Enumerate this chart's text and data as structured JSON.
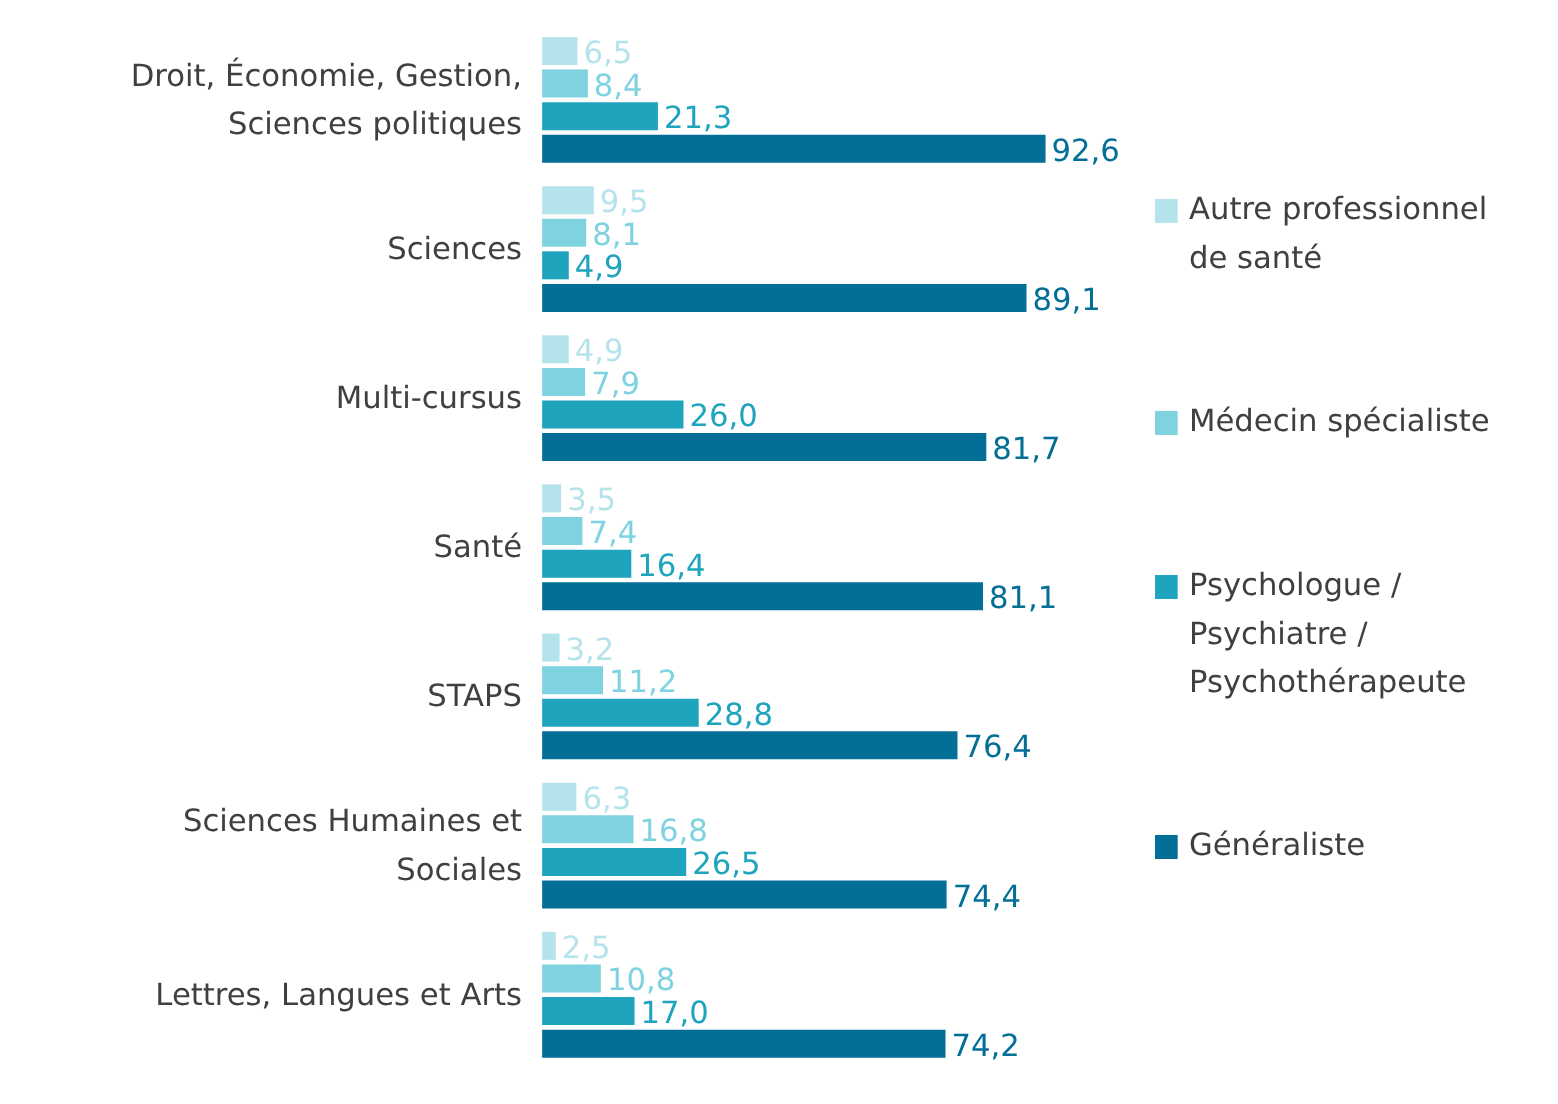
{
  "chart_data": {
    "type": "bar",
    "orientation": "horizontal",
    "categories": [
      "Droit, Économie, Gestion, Sciences politiques",
      "Sciences",
      "Multi-cursus",
      "Santé",
      "STAPS",
      "Sciences Humaines et Sociales",
      "Lettres, Langues et Arts"
    ],
    "series": [
      {
        "name": "Autre professionnel de santé",
        "color": "#b5e3ec",
        "values": [
          6.5,
          9.5,
          4.9,
          3.5,
          3.2,
          6.3,
          2.5
        ],
        "value_labels": [
          "6,5",
          "9,5",
          "4,9",
          "3,5",
          "3,2",
          "6,3",
          "2,5"
        ]
      },
      {
        "name": "Médecin spécialiste",
        "color": "#7fd2e0",
        "values": [
          8.4,
          8.1,
          7.9,
          7.4,
          11.2,
          16.8,
          10.8
        ],
        "value_labels": [
          "8,4",
          "8,1",
          "7,9",
          "7,4",
          "11,2",
          "16,8",
          "10,8"
        ]
      },
      {
        "name": "Psychologue / Psychiatre / Psychothérapeute",
        "color": "#1fa4bd",
        "values": [
          21.3,
          4.9,
          26.0,
          16.4,
          28.8,
          26.5,
          17.0
        ],
        "value_labels": [
          "21,3",
          "4,9",
          "26,0",
          "16,4",
          "28,8",
          "26,5",
          "17,0"
        ]
      },
      {
        "name": "Généraliste",
        "color": "#036f96",
        "values": [
          92.6,
          89.1,
          81.7,
          81.1,
          76.4,
          74.4,
          74.2
        ],
        "value_labels": [
          "92,6",
          "89,1",
          "81,7",
          "81,1",
          "76,4",
          "74,4",
          "74,2"
        ]
      }
    ],
    "legend": "right",
    "grid": false
  }
}
